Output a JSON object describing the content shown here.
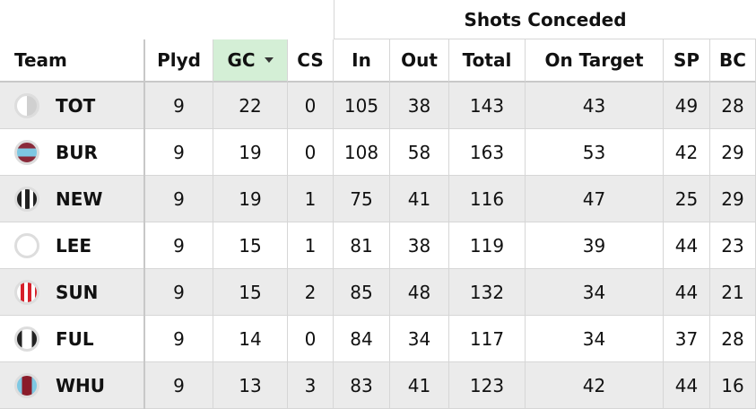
{
  "table": {
    "group_header": "Shots Conceded",
    "columns": [
      "Team",
      "Plyd",
      "GC",
      "CS",
      "In",
      "Out",
      "Total",
      "On Target",
      "SP",
      "BC"
    ],
    "rows": [
      [
        "TOT",
        9,
        22,
        0,
        105,
        38,
        143,
        43,
        49,
        28
      ],
      [
        "BUR",
        9,
        19,
        0,
        108,
        58,
        163,
        53,
        42,
        29
      ],
      [
        "NEW",
        9,
        19,
        1,
        75,
        41,
        116,
        47,
        25,
        29
      ],
      [
        "LEE",
        9,
        15,
        1,
        81,
        38,
        119,
        39,
        44,
        23
      ],
      [
        "SUN",
        9,
        15,
        2,
        85,
        48,
        132,
        34,
        44,
        21
      ],
      [
        "FUL",
        9,
        14,
        0,
        84,
        34,
        117,
        34,
        37,
        28
      ],
      [
        "WHU",
        9,
        13,
        3,
        83,
        41,
        123,
        42,
        44,
        16
      ]
    ]
  }
}
